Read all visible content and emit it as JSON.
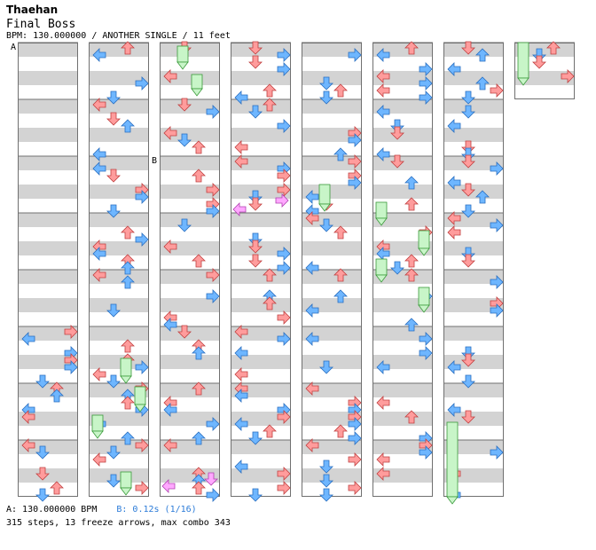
{
  "header": {
    "artist": "Thaehan",
    "title": "Final Boss",
    "subtitle": "BPM: 130.000000 / ANOTHER SINGLE / 11 feet"
  },
  "markers": {
    "a": "A",
    "b": "B"
  },
  "footer": {
    "bpm_line": "A: 130.000000 BPM",
    "speed_change": "B: 0.12s (1/16)",
    "stats": "315 steps, 13 freeze arrows, max combo 343"
  },
  "colors": {
    "stripe": "#d3d3d3",
    "border": "#707070",
    "red_arrow": "#ff9c9c",
    "blue_arrow": "#6eb6ff",
    "freeze": "#c8f5c8",
    "purple_arrow": "#ffa8ff"
  },
  "icons": {
    "left": "left-arrow-icon",
    "down": "down-arrow-icon",
    "up": "up-arrow-icon",
    "right": "right-arrow-icon",
    "freeze": "freeze-arrow-icon"
  },
  "chart_data": {
    "type": "table",
    "columns": 8,
    "measures_per_column": 8,
    "total_measures": 57,
    "steps": 315,
    "freeze_arrows": 13,
    "max_combo": 343,
    "bpm": 130,
    "speed_change": {
      "measure": 17,
      "label": "B",
      "time": "0.12s",
      "fraction": "1/16"
    }
  }
}
